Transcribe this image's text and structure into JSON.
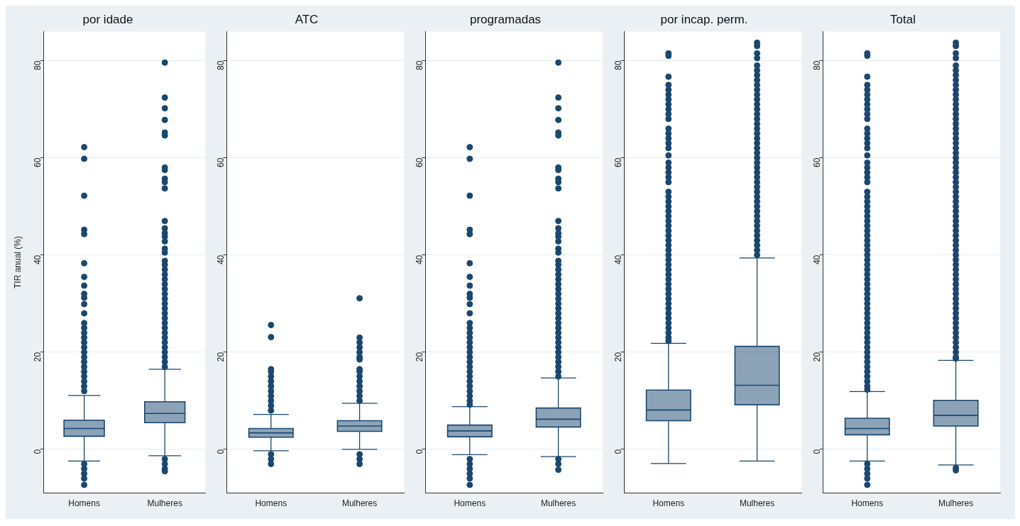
{
  "chart_data": [
    {
      "type": "box",
      "title": "por idade",
      "ylabel": "TIR anual (%)",
      "categories": [
        "Homens",
        "Mulheres"
      ],
      "color": "#1a476f",
      "ylim": [
        -9,
        86
      ],
      "yticks": [
        0,
        20,
        40,
        60,
        80
      ],
      "grid": "y",
      "boxes": [
        {
          "low": -2.4,
          "q1": 2.7,
          "median": 4.3,
          "q3": 6.0,
          "high": 11.1,
          "outliers": [
            62.2,
            59.8,
            52.2,
            45.2,
            44.3,
            38.3,
            35.5,
            33.7,
            32.0,
            31.2,
            29.9,
            28.0,
            26,
            25,
            24,
            23,
            22,
            21,
            20,
            19,
            18,
            17,
            16,
            15,
            14,
            13,
            12,
            -3,
            -4,
            -5,
            -6,
            -7.3
          ]
        },
        {
          "low": -1.3,
          "q1": 5.5,
          "median": 7.4,
          "q3": 9.8,
          "high": 16.5,
          "outliers": [
            79.6,
            72.4,
            70.2,
            67.8,
            65.2,
            64.6,
            58,
            57.5,
            55.7,
            55,
            53.7,
            47,
            45.5,
            44.5,
            43.8,
            42.8,
            41.3,
            40.5,
            38.8,
            38,
            37,
            36,
            35,
            34,
            33,
            32,
            31,
            30,
            29,
            28,
            27,
            26,
            25,
            24,
            23,
            22,
            21,
            20,
            19,
            18,
            17,
            -2,
            -3,
            -4,
            -4.5
          ]
        }
      ]
    },
    {
      "type": "box",
      "title": "ATC",
      "categories": [
        "Homens",
        "Mulheres"
      ],
      "color": "#1a476f",
      "ylim": [
        -9,
        86
      ],
      "yticks": [
        0,
        20,
        40,
        60,
        80
      ],
      "grid": "y",
      "boxes": [
        {
          "low": -0.3,
          "q1": 2.5,
          "median": 3.4,
          "q3": 4.3,
          "high": 7.2,
          "outliers": [
            25.6,
            23.1,
            16.5,
            16,
            15,
            14,
            13,
            12,
            11,
            10,
            9,
            8,
            -1,
            -2,
            -3
          ]
        },
        {
          "low": 0,
          "q1": 3.7,
          "median": 4.8,
          "q3": 5.9,
          "high": 9.5,
          "outliers": [
            31.1,
            23,
            22,
            21,
            20,
            19,
            18.5,
            16.5,
            16,
            15,
            14,
            13,
            12,
            11,
            10,
            -1,
            -2,
            -3
          ]
        }
      ]
    },
    {
      "type": "box",
      "title": "programadas",
      "categories": [
        "Homens",
        "Mulheres"
      ],
      "color": "#1a476f",
      "ylim": [
        -9,
        86
      ],
      "yticks": [
        0,
        20,
        40,
        60,
        80
      ],
      "grid": "y",
      "boxes": [
        {
          "low": -1.1,
          "q1": 2.6,
          "median": 3.8,
          "q3": 5.0,
          "high": 8.8,
          "outliers": [
            62.2,
            59.8,
            52.2,
            45.2,
            44.3,
            38.3,
            35.5,
            33.7,
            32.0,
            31.2,
            29.9,
            28.0,
            26,
            25,
            24,
            23,
            22,
            21,
            20,
            19,
            18,
            17,
            16,
            15,
            14,
            13,
            12,
            11,
            10,
            9.2,
            -2,
            -3,
            -4,
            -5,
            -6,
            -7.3
          ]
        },
        {
          "low": -1.5,
          "q1": 4.6,
          "median": 6.2,
          "q3": 8.5,
          "high": 14.7,
          "outliers": [
            79.6,
            72.4,
            70.2,
            67.8,
            65.2,
            64.6,
            58,
            57.5,
            55.7,
            55,
            53.7,
            47,
            45.5,
            44.5,
            43.8,
            42.8,
            41.3,
            40.5,
            38.8,
            38,
            37,
            36,
            35,
            34,
            33,
            32,
            31,
            30,
            29,
            28,
            27,
            26,
            25,
            24,
            23,
            22,
            21,
            20,
            19,
            18,
            17,
            16,
            15,
            -2,
            -3,
            -4.2
          ]
        }
      ]
    },
    {
      "type": "box",
      "title": "por incap. perm.",
      "categories": [
        "Homens",
        "Mulheres"
      ],
      "color": "#1a476f",
      "ylim": [
        -9,
        86
      ],
      "yticks": [
        0,
        20,
        40,
        60,
        80
      ],
      "grid": "y",
      "boxes": [
        {
          "low": -2.9,
          "q1": 5.9,
          "median": 8.1,
          "q3": 12.2,
          "high": 21.8,
          "outliers": [
            81.5,
            81,
            76.7,
            75,
            74,
            73,
            72,
            71,
            70,
            69,
            68,
            66,
            65,
            64,
            63,
            62,
            60.5,
            59,
            58,
            57,
            56,
            55,
            53,
            52,
            51,
            50,
            49,
            48,
            47,
            46,
            45,
            44,
            43,
            42,
            41,
            40,
            39,
            38,
            37,
            36,
            35,
            34,
            33,
            32,
            31,
            30,
            29,
            28,
            27,
            26,
            25,
            24,
            23,
            22.3
          ]
        },
        {
          "low": -2.4,
          "q1": 9.2,
          "median": 13.2,
          "q3": 21.2,
          "high": 39.4,
          "outliers": [
            83.7,
            83,
            81.5,
            80.5,
            79,
            78,
            77,
            76,
            75,
            74,
            73,
            72,
            71,
            70,
            69,
            68,
            67,
            66,
            65,
            64,
            63,
            62,
            61,
            60,
            59,
            58,
            57,
            56,
            55,
            54,
            53,
            52,
            51,
            50,
            49,
            48,
            47,
            46,
            45,
            44,
            43,
            42,
            41,
            40
          ]
        }
      ]
    },
    {
      "type": "box",
      "title": "Total",
      "categories": [
        "Homens",
        "Mulheres"
      ],
      "color": "#1a476f",
      "ylim": [
        -9,
        86
      ],
      "yticks": [
        0,
        20,
        40,
        60,
        80
      ],
      "grid": "y",
      "boxes": [
        {
          "low": -2.4,
          "q1": 3.0,
          "median": 4.3,
          "q3": 6.4,
          "high": 11.9,
          "outliers": [
            81.5,
            81,
            76.7,
            75,
            74,
            73,
            72,
            71,
            70,
            69,
            68,
            66,
            65,
            64,
            63,
            62,
            60.5,
            59,
            58,
            57,
            56,
            55,
            53,
            52,
            51,
            50,
            49,
            48,
            47,
            46,
            45,
            44,
            43,
            42,
            41,
            40,
            39,
            38,
            37,
            36,
            35,
            34,
            33,
            32,
            31,
            30,
            29,
            28,
            27,
            26,
            25,
            24,
            23,
            22,
            21,
            20,
            19,
            18,
            17,
            16,
            15,
            14,
            13,
            12.3,
            -3,
            -4,
            -5,
            -6,
            -7.3
          ]
        },
        {
          "low": -3.2,
          "q1": 4.8,
          "median": 7.0,
          "q3": 10.1,
          "high": 18.3,
          "outliers": [
            83.7,
            83,
            81.5,
            80.5,
            79,
            78,
            77,
            76,
            75,
            74,
            73,
            72,
            71,
            70,
            69,
            68,
            67,
            66,
            65,
            64,
            63,
            62,
            61,
            60,
            59,
            58,
            57,
            56,
            55,
            54,
            53,
            52,
            51,
            50,
            49,
            48,
            47,
            46,
            45,
            44,
            43,
            42,
            41,
            40,
            39,
            38,
            37,
            36,
            35,
            34,
            33,
            32,
            31,
            30,
            29,
            28,
            27,
            26,
            25,
            24,
            23,
            22,
            21,
            20,
            19,
            18.7,
            -3.8,
            -4.3
          ]
        }
      ]
    }
  ]
}
